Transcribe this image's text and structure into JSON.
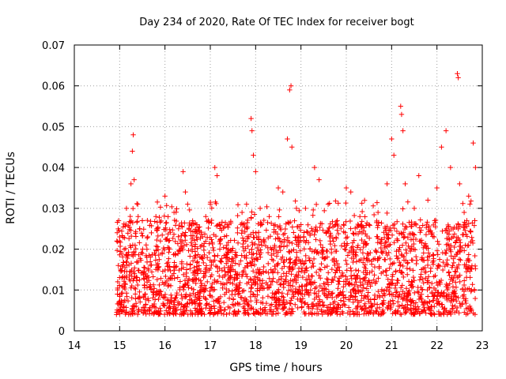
{
  "chart_data": {
    "type": "scatter",
    "title": "Day 234 of 2020, Rate Of TEC Index for receiver bogt",
    "xlabel": "GPS time / hours",
    "ylabel": "ROTI / TECUs",
    "xlim": [
      14,
      23
    ],
    "ylim": [
      0,
      0.07
    ],
    "xticks": [
      "14",
      "15",
      "16",
      "17",
      "18",
      "19",
      "20",
      "21",
      "22",
      "23"
    ],
    "yticks": [
      "0",
      "0.01",
      "0.02",
      "0.03",
      "0.04",
      "0.05",
      "0.06",
      "0.07"
    ],
    "grid": true,
    "marker": "+",
    "color": "#ff0000",
    "x_range_of_data": [
      14.92,
      22.85
    ],
    "dense_band": [
      0.004,
      0.025
    ],
    "points": [
      [
        14.93,
        0.004
      ],
      [
        14.95,
        0.009
      ],
      [
        14.97,
        0.016
      ],
      [
        15.0,
        0.022
      ],
      [
        15.05,
        0.013
      ],
      [
        15.1,
        0.02
      ],
      [
        15.15,
        0.03
      ],
      [
        15.2,
        0.004
      ],
      [
        15.25,
        0.036
      ],
      [
        15.28,
        0.044
      ],
      [
        15.3,
        0.048
      ],
      [
        15.32,
        0.037
      ],
      [
        15.4,
        0.031
      ],
      [
        15.5,
        0.027
      ],
      [
        15.6,
        0.018
      ],
      [
        15.7,
        0.024
      ],
      [
        15.8,
        0.028
      ],
      [
        15.9,
        0.022
      ],
      [
        16.0,
        0.033
      ],
      [
        16.1,
        0.02
      ],
      [
        16.2,
        0.029
      ],
      [
        16.3,
        0.025
      ],
      [
        16.4,
        0.039
      ],
      [
        16.45,
        0.034
      ],
      [
        16.5,
        0.031
      ],
      [
        16.6,
        0.02
      ],
      [
        16.7,
        0.026
      ],
      [
        16.8,
        0.018
      ],
      [
        16.9,
        0.028
      ],
      [
        17.0,
        0.031
      ],
      [
        17.1,
        0.04
      ],
      [
        17.15,
        0.038
      ],
      [
        17.2,
        0.026
      ],
      [
        17.4,
        0.02
      ],
      [
        17.6,
        0.024
      ],
      [
        17.7,
        0.029
      ],
      [
        17.8,
        0.031
      ],
      [
        17.9,
        0.052
      ],
      [
        17.92,
        0.049
      ],
      [
        17.95,
        0.043
      ],
      [
        18.0,
        0.039
      ],
      [
        18.1,
        0.03
      ],
      [
        18.3,
        0.028
      ],
      [
        18.5,
        0.035
      ],
      [
        18.6,
        0.034
      ],
      [
        18.7,
        0.047
      ],
      [
        18.75,
        0.059
      ],
      [
        18.78,
        0.06
      ],
      [
        18.8,
        0.045
      ],
      [
        18.9,
        0.03
      ],
      [
        19.0,
        0.026
      ],
      [
        19.1,
        0.03
      ],
      [
        19.3,
        0.04
      ],
      [
        19.4,
        0.037
      ],
      [
        19.6,
        0.031
      ],
      [
        19.8,
        0.027
      ],
      [
        20.0,
        0.035
      ],
      [
        20.1,
        0.034
      ],
      [
        20.3,
        0.028
      ],
      [
        20.5,
        0.026
      ],
      [
        20.7,
        0.029
      ],
      [
        20.9,
        0.036
      ],
      [
        21.0,
        0.047
      ],
      [
        21.05,
        0.043
      ],
      [
        21.2,
        0.055
      ],
      [
        21.22,
        0.053
      ],
      [
        21.25,
        0.049
      ],
      [
        21.3,
        0.036
      ],
      [
        21.5,
        0.03
      ],
      [
        21.6,
        0.038
      ],
      [
        21.8,
        0.032
      ],
      [
        22.0,
        0.035
      ],
      [
        22.1,
        0.045
      ],
      [
        22.2,
        0.049
      ],
      [
        22.3,
        0.04
      ],
      [
        22.45,
        0.063
      ],
      [
        22.47,
        0.062
      ],
      [
        22.5,
        0.036
      ],
      [
        22.6,
        0.029
      ],
      [
        22.7,
        0.033
      ],
      [
        22.8,
        0.046
      ],
      [
        22.85,
        0.04
      ]
    ]
  }
}
